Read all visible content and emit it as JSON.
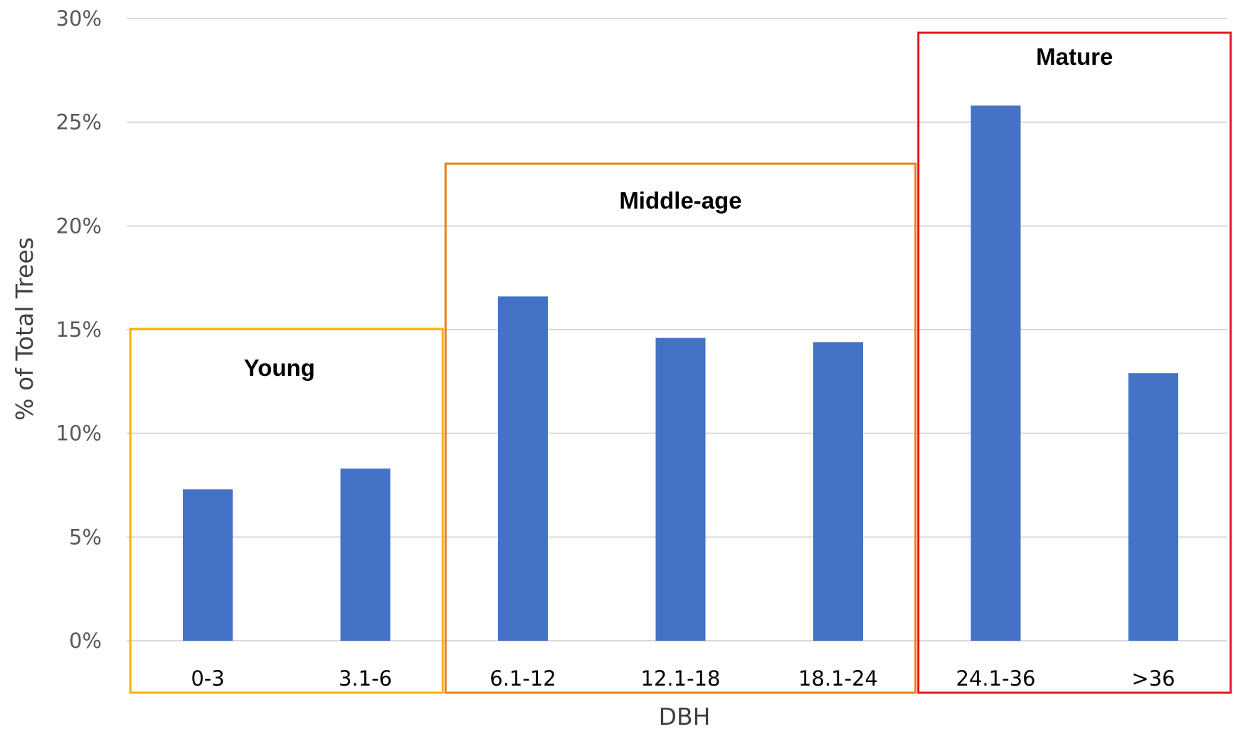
{
  "chart_data": {
    "type": "bar",
    "xlabel": "DBH",
    "ylabel": "% of Total Trees",
    "ylim": [
      0,
      30
    ],
    "yticks": [
      "0%",
      "5%",
      "10%",
      "15%",
      "20%",
      "25%",
      "30%"
    ],
    "grid": true,
    "categories": [
      "0-3",
      "3.1-6",
      "6.1-12",
      "12.1-18",
      "18.1-24",
      "24.1-36",
      ">36"
    ],
    "values": [
      7.3,
      8.3,
      16.6,
      14.6,
      14.4,
      25.8,
      12.9
    ],
    "bar_color": "#4472c4",
    "groups": [
      {
        "label": "Young",
        "categories": [
          "0-3",
          "3.1-6"
        ],
        "color": "#f5b400"
      },
      {
        "label": "Middle-age",
        "categories": [
          "6.1-12",
          "12.1-18",
          "18.1-24"
        ],
        "color": "#e8801a"
      },
      {
        "label": "Mature",
        "categories": [
          "24.1-36",
          ">36"
        ],
        "color": "#e8141e"
      }
    ]
  }
}
